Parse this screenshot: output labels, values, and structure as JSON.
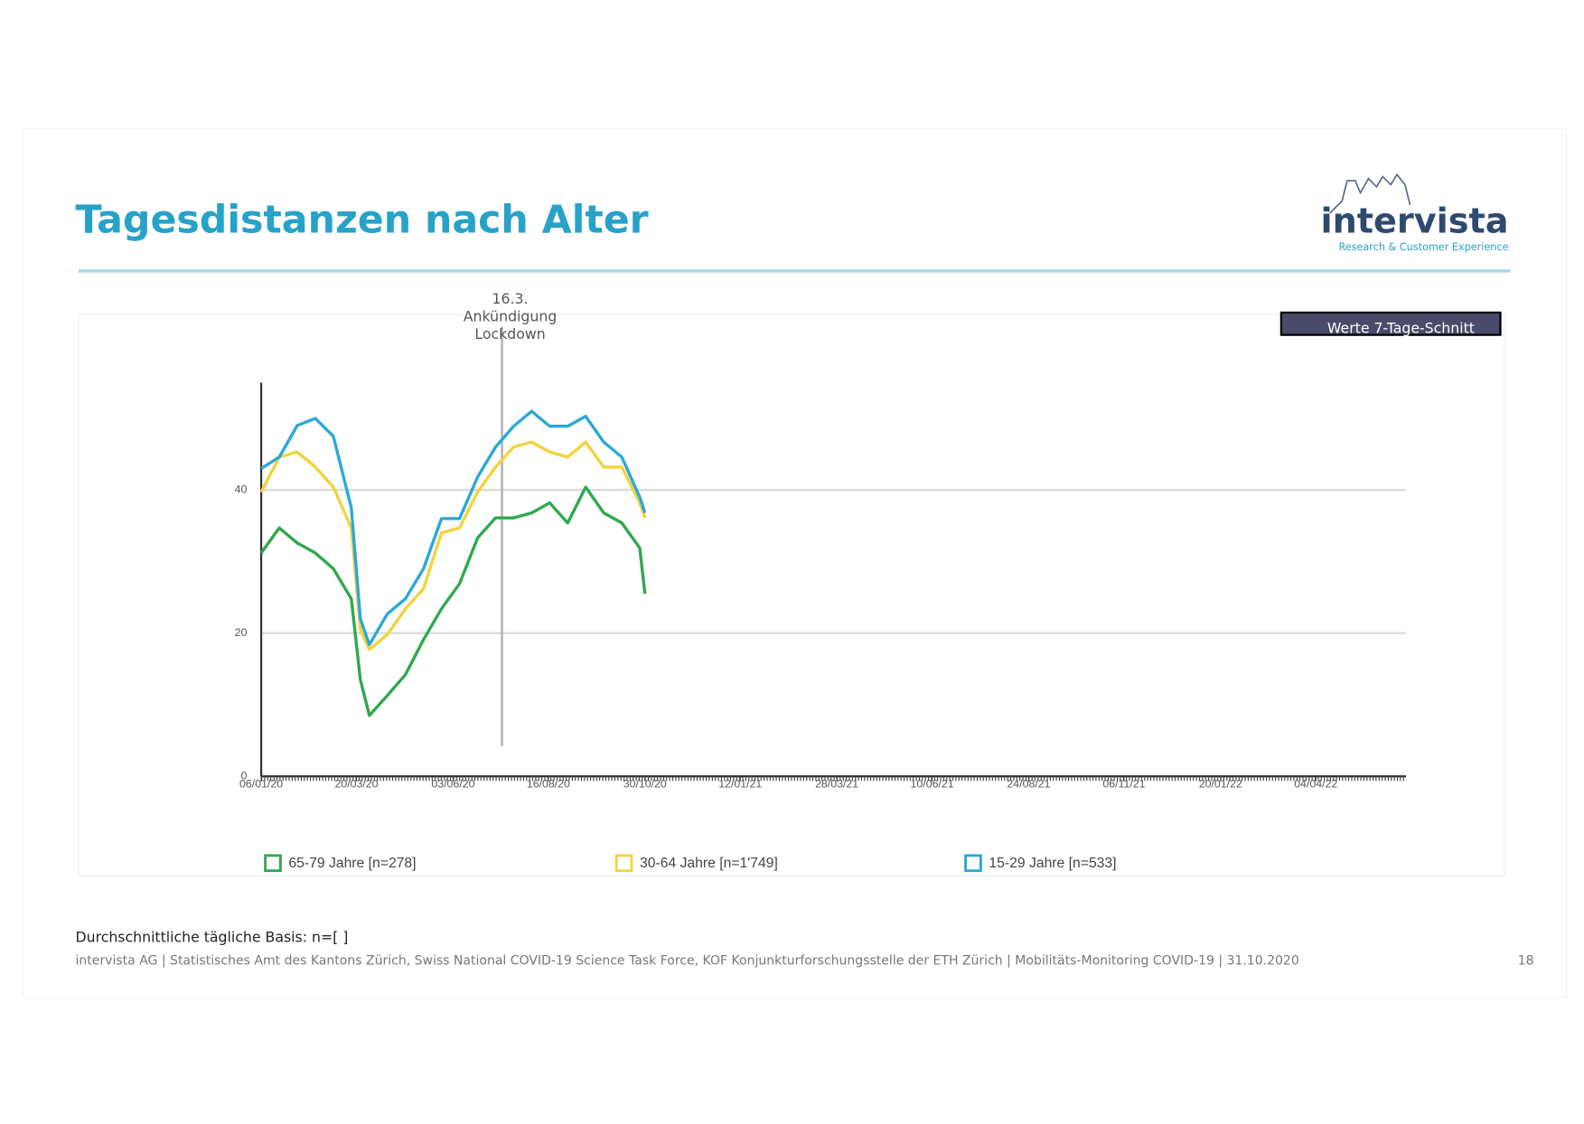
{
  "slide": {
    "title": "Tagesdistanzen nach Alter",
    "logo": "intervista",
    "logo_tagline": "Research & Customer Experience",
    "badge": "Werte 7-Tage-Schnitt",
    "footnote": "Durchschnittliche tägliche Basis: n=[ ]",
    "source": "intervista AG | Statistisches Amt des Kantons Zürich, Swiss National COVID-19 Science Task Force, KOF Konjunkturforschungsstelle der ETH Zürich | Mobilitäts-Monitoring COVID-19 | 31.10.2020",
    "page_number": "18"
  },
  "chart_data": {
    "type": "line",
    "x": [
      "2020-01-06",
      "2020-01-20",
      "2020-02-03",
      "2020-02-17",
      "2020-03-02",
      "2020-03-16",
      "2020-03-23",
      "2020-03-30",
      "2020-04-13",
      "2020-04-27",
      "2020-05-11",
      "2020-05-25",
      "2020-06-08",
      "2020-06-22",
      "2020-07-06",
      "2020-07-20",
      "2020-08-03",
      "2020-08-17",
      "2020-08-31",
      "2020-09-14",
      "2020-09-28",
      "2020-10-12",
      "2020-10-26",
      "2020-10-30"
    ],
    "series": [
      {
        "name": "65-79 Jahre [n=278]",
        "color": "#2fa84f",
        "values": [
          31.2,
          34.7,
          32.6,
          31.2,
          29,
          24.8,
          13.5,
          8.5,
          11.3,
          14.2,
          19.1,
          23.4,
          26.9,
          33.3,
          36.1,
          36.1,
          36.8,
          38.2,
          35.4,
          40.4,
          36.8,
          35.4,
          31.9,
          25.5
        ]
      },
      {
        "name": "30-64 Jahre [n=1'749]",
        "color": "#f2d33c",
        "values": [
          39.7,
          44.6,
          45.3,
          43.2,
          40.4,
          34.7,
          20.5,
          17.7,
          19.8,
          23.4,
          26.2,
          34,
          34.7,
          39.7,
          43.2,
          46,
          46.7,
          45.3,
          44.6,
          46.7,
          43.2,
          43.2,
          38.2,
          36.1
        ]
      },
      {
        "name": "15-29 Jahre [n=533]",
        "color": "#2aa8d8",
        "values": [
          43,
          44.6,
          49,
          50,
          47.5,
          37.5,
          22,
          18.4,
          22.7,
          24.8,
          29,
          36,
          36,
          41.8,
          46,
          48.9,
          51,
          48.9,
          48.9,
          50.3,
          46.7,
          44.6,
          39,
          36.8
        ]
      }
    ],
    "xlim": [
      "2020-01-06",
      "2022-06-13"
    ],
    "xticks": [
      {
        "value": "2020-01-06",
        "label": "06/01/20"
      },
      {
        "value": "2020-03-20",
        "label": "20/03/20"
      },
      {
        "value": "2020-06-03",
        "label": "03/06/20"
      },
      {
        "value": "2020-08-16",
        "label": "16/08/20"
      },
      {
        "value": "2020-10-30",
        "label": "30/10/20"
      },
      {
        "value": "2021-01-12",
        "label": "12/01/21"
      },
      {
        "value": "2021-03-28",
        "label": "28/03/21"
      },
      {
        "value": "2021-06-10",
        "label": "10/06/21"
      },
      {
        "value": "2021-08-24",
        "label": "24/08/21"
      },
      {
        "value": "2021-11-06",
        "label": "06/11/21"
      },
      {
        "value": "2022-01-20",
        "label": "20/01/22"
      },
      {
        "value": "2022-04-04",
        "label": "04/04/22"
      }
    ],
    "ylim": [
      0,
      55
    ],
    "yticks": [
      0,
      20,
      40
    ],
    "grid": true,
    "annotation": {
      "x": "2020-07-11",
      "text": [
        "16.3.",
        "Ankündigung",
        "Lockdown"
      ]
    }
  }
}
